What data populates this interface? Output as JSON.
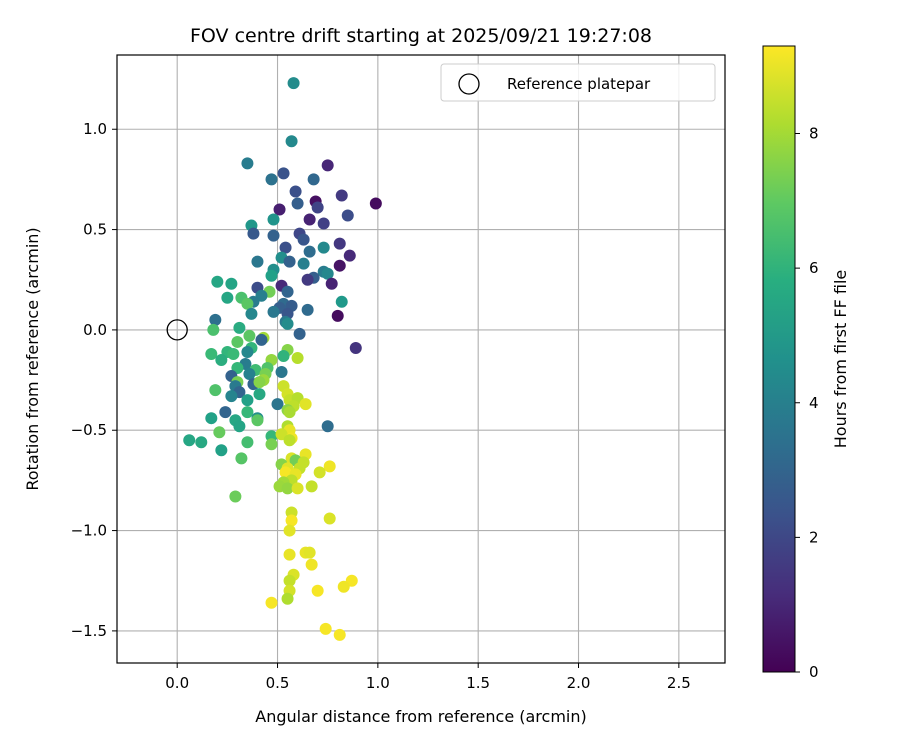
{
  "chart_data": {
    "type": "scatter",
    "title": "FOV centre drift starting at 2025/09/21 19:27:08",
    "xlabel": "Angular distance from reference (arcmin)",
    "ylabel": "Rotation from reference (arcmin)",
    "xlim": [
      -0.3,
      2.73
    ],
    "ylim": [
      -1.66,
      1.37
    ],
    "xticks": [
      0.0,
      0.5,
      1.0,
      1.5,
      2.0,
      2.5
    ],
    "xtick_labels": [
      "0.0",
      "0.5",
      "1.0",
      "1.5",
      "2.0",
      "2.5"
    ],
    "yticks": [
      1.0,
      0.5,
      0.0,
      -0.5,
      -1.0,
      -1.5
    ],
    "ytick_labels": [
      "1.0",
      "0.5",
      "0.0",
      "−0.5",
      "−1.0",
      "−1.5"
    ],
    "grid": true,
    "colormap": "viridis",
    "colorbar": {
      "label": "Hours from first FF file",
      "range": [
        0,
        9.3
      ],
      "ticks": [
        0,
        2,
        4,
        6,
        8
      ],
      "tick_labels": [
        "0",
        "2",
        "4",
        "6",
        "8"
      ]
    },
    "legend": {
      "location": "top-right",
      "label": "Reference platepar"
    },
    "reference_point": {
      "x": 0.0,
      "y": 0.0
    },
    "points": [
      {
        "x": 0.58,
        "y": 1.23,
        "h": 4.5
      },
      {
        "x": 0.57,
        "y": 0.94,
        "h": 4.4
      },
      {
        "x": 0.35,
        "y": 0.83,
        "h": 3.9
      },
      {
        "x": 0.53,
        "y": 0.78,
        "h": 2.4
      },
      {
        "x": 0.47,
        "y": 0.75,
        "h": 3.5
      },
      {
        "x": 0.68,
        "y": 0.75,
        "h": 3.1
      },
      {
        "x": 0.75,
        "y": 0.82,
        "h": 1.0
      },
      {
        "x": 0.59,
        "y": 0.69,
        "h": 2.3
      },
      {
        "x": 0.82,
        "y": 0.67,
        "h": 1.6
      },
      {
        "x": 0.69,
        "y": 0.64,
        "h": 0.4
      },
      {
        "x": 0.99,
        "y": 0.63,
        "h": 0.3
      },
      {
        "x": 0.6,
        "y": 0.63,
        "h": 2.8
      },
      {
        "x": 0.51,
        "y": 0.6,
        "h": 0.8
      },
      {
        "x": 0.7,
        "y": 0.61,
        "h": 1.9
      },
      {
        "x": 0.85,
        "y": 0.57,
        "h": 2.2
      },
      {
        "x": 0.48,
        "y": 0.55,
        "h": 4.8
      },
      {
        "x": 0.66,
        "y": 0.55,
        "h": 0.9
      },
      {
        "x": 0.37,
        "y": 0.52,
        "h": 4.9
      },
      {
        "x": 0.73,
        "y": 0.53,
        "h": 1.8
      },
      {
        "x": 0.61,
        "y": 0.48,
        "h": 2.0
      },
      {
        "x": 0.38,
        "y": 0.48,
        "h": 2.6
      },
      {
        "x": 0.48,
        "y": 0.47,
        "h": 2.9
      },
      {
        "x": 0.63,
        "y": 0.45,
        "h": 2.5
      },
      {
        "x": 0.81,
        "y": 0.43,
        "h": 1.5
      },
      {
        "x": 0.54,
        "y": 0.41,
        "h": 2.3
      },
      {
        "x": 0.73,
        "y": 0.41,
        "h": 4.4
      },
      {
        "x": 0.66,
        "y": 0.39,
        "h": 3.3
      },
      {
        "x": 0.86,
        "y": 0.37,
        "h": 1.1
      },
      {
        "x": 0.52,
        "y": 0.36,
        "h": 4.6
      },
      {
        "x": 0.4,
        "y": 0.34,
        "h": 3.7
      },
      {
        "x": 0.56,
        "y": 0.34,
        "h": 2.9
      },
      {
        "x": 0.63,
        "y": 0.33,
        "h": 4.0
      },
      {
        "x": 0.81,
        "y": 0.32,
        "h": 0.5
      },
      {
        "x": 0.48,
        "y": 0.3,
        "h": 4.6
      },
      {
        "x": 0.73,
        "y": 0.29,
        "h": 3.9
      },
      {
        "x": 0.75,
        "y": 0.28,
        "h": 4.3
      },
      {
        "x": 0.47,
        "y": 0.27,
        "h": 5.3
      },
      {
        "x": 0.68,
        "y": 0.26,
        "h": 2.8
      },
      {
        "x": 0.65,
        "y": 0.25,
        "h": 1.6
      },
      {
        "x": 0.77,
        "y": 0.23,
        "h": 0.9
      },
      {
        "x": 0.52,
        "y": 0.22,
        "h": 1.1
      },
      {
        "x": 0.2,
        "y": 0.24,
        "h": 5.5
      },
      {
        "x": 0.27,
        "y": 0.23,
        "h": 5.4
      },
      {
        "x": 0.4,
        "y": 0.21,
        "h": 2.2
      },
      {
        "x": 0.55,
        "y": 0.19,
        "h": 3.0
      },
      {
        "x": 0.46,
        "y": 0.19,
        "h": 7.3
      },
      {
        "x": 0.42,
        "y": 0.17,
        "h": 4.0
      },
      {
        "x": 0.32,
        "y": 0.16,
        "h": 6.6
      },
      {
        "x": 0.25,
        "y": 0.16,
        "h": 5.5
      },
      {
        "x": 0.38,
        "y": 0.14,
        "h": 3.9
      },
      {
        "x": 0.35,
        "y": 0.13,
        "h": 6.9
      },
      {
        "x": 0.53,
        "y": 0.13,
        "h": 3.2
      },
      {
        "x": 0.82,
        "y": 0.14,
        "h": 5.0
      },
      {
        "x": 0.57,
        "y": 0.12,
        "h": 2.7
      },
      {
        "x": 0.51,
        "y": 0.11,
        "h": 2.8
      },
      {
        "x": 0.65,
        "y": 0.1,
        "h": 3.2
      },
      {
        "x": 0.48,
        "y": 0.09,
        "h": 3.7
      },
      {
        "x": 0.37,
        "y": 0.08,
        "h": 4.3
      },
      {
        "x": 0.55,
        "y": 0.08,
        "h": 2.5
      },
      {
        "x": 0.8,
        "y": 0.07,
        "h": 0.3
      },
      {
        "x": 0.19,
        "y": 0.05,
        "h": 3.4
      },
      {
        "x": 0.54,
        "y": 0.04,
        "h": 3.8
      },
      {
        "x": 0.31,
        "y": 0.01,
        "h": 5.7
      },
      {
        "x": 0.18,
        "y": 0.0,
        "h": 6.6
      },
      {
        "x": 0.55,
        "y": 0.03,
        "h": 4.5
      },
      {
        "x": 0.61,
        "y": -0.02,
        "h": 2.9
      },
      {
        "x": 0.36,
        "y": -0.03,
        "h": 6.9
      },
      {
        "x": 0.43,
        "y": -0.04,
        "h": 8.0
      },
      {
        "x": 0.42,
        "y": -0.05,
        "h": 3.0
      },
      {
        "x": 0.3,
        "y": -0.06,
        "h": 6.9
      },
      {
        "x": 0.89,
        "y": -0.09,
        "h": 1.4
      },
      {
        "x": 0.37,
        "y": -0.09,
        "h": 6.1
      },
      {
        "x": 0.35,
        "y": -0.11,
        "h": 4.3
      },
      {
        "x": 0.25,
        "y": -0.11,
        "h": 6.1
      },
      {
        "x": 0.55,
        "y": -0.1,
        "h": 7.6
      },
      {
        "x": 0.17,
        "y": -0.12,
        "h": 6.3
      },
      {
        "x": 0.53,
        "y": -0.13,
        "h": 6.0
      },
      {
        "x": 0.28,
        "y": -0.12,
        "h": 6.3
      },
      {
        "x": 0.6,
        "y": -0.14,
        "h": 8.3
      },
      {
        "x": 0.22,
        "y": -0.15,
        "h": 5.8
      },
      {
        "x": 0.34,
        "y": -0.17,
        "h": 3.9
      },
      {
        "x": 0.47,
        "y": -0.15,
        "h": 7.8
      },
      {
        "x": 0.3,
        "y": -0.19,
        "h": 6.2
      },
      {
        "x": 0.39,
        "y": -0.2,
        "h": 6.4
      },
      {
        "x": 0.45,
        "y": -0.19,
        "h": 6.7
      },
      {
        "x": 0.52,
        "y": -0.21,
        "h": 3.7
      },
      {
        "x": 0.36,
        "y": -0.22,
        "h": 4.1
      },
      {
        "x": 0.27,
        "y": -0.23,
        "h": 2.9
      },
      {
        "x": 0.44,
        "y": -0.22,
        "h": 7.4
      },
      {
        "x": 0.43,
        "y": -0.25,
        "h": 7.9
      },
      {
        "x": 0.3,
        "y": -0.26,
        "h": 7.4
      },
      {
        "x": 0.38,
        "y": -0.27,
        "h": 3.0
      },
      {
        "x": 0.29,
        "y": -0.28,
        "h": 3.8
      },
      {
        "x": 0.41,
        "y": -0.26,
        "h": 7.6
      },
      {
        "x": 0.53,
        "y": -0.28,
        "h": 8.6
      },
      {
        "x": 0.19,
        "y": -0.3,
        "h": 6.7
      },
      {
        "x": 0.31,
        "y": -0.31,
        "h": 3.0
      },
      {
        "x": 0.55,
        "y": -0.32,
        "h": 8.7
      },
      {
        "x": 0.41,
        "y": -0.32,
        "h": 5.6
      },
      {
        "x": 0.27,
        "y": -0.33,
        "h": 4.2
      },
      {
        "x": 0.35,
        "y": -0.35,
        "h": 5.3
      },
      {
        "x": 0.56,
        "y": -0.35,
        "h": 8.5
      },
      {
        "x": 0.6,
        "y": -0.34,
        "h": 8.3
      },
      {
        "x": 0.5,
        "y": -0.37,
        "h": 3.6
      },
      {
        "x": 0.64,
        "y": -0.37,
        "h": 8.9
      },
      {
        "x": 0.58,
        "y": -0.38,
        "h": 8.4
      },
      {
        "x": 0.55,
        "y": -0.4,
        "h": 7.7
      },
      {
        "x": 0.35,
        "y": -0.41,
        "h": 6.2
      },
      {
        "x": 0.24,
        "y": -0.41,
        "h": 3.0
      },
      {
        "x": 0.56,
        "y": -0.41,
        "h": 8.1
      },
      {
        "x": 0.17,
        "y": -0.44,
        "h": 5.3
      },
      {
        "x": 0.4,
        "y": -0.44,
        "h": 4.6
      },
      {
        "x": 0.4,
        "y": -0.45,
        "h": 6.9
      },
      {
        "x": 0.29,
        "y": -0.45,
        "h": 5.5
      },
      {
        "x": 0.31,
        "y": -0.48,
        "h": 5.4
      },
      {
        "x": 0.55,
        "y": -0.48,
        "h": 8.2
      },
      {
        "x": 0.75,
        "y": -0.48,
        "h": 3.3
      },
      {
        "x": 0.56,
        "y": -0.5,
        "h": 9.0
      },
      {
        "x": 0.21,
        "y": -0.51,
        "h": 7.1
      },
      {
        "x": 0.47,
        "y": -0.53,
        "h": 6.2
      },
      {
        "x": 0.52,
        "y": -0.52,
        "h": 8.6
      },
      {
        "x": 0.06,
        "y": -0.55,
        "h": 5.5
      },
      {
        "x": 0.57,
        "y": -0.54,
        "h": 9.1
      },
      {
        "x": 0.56,
        "y": -0.55,
        "h": 8.4
      },
      {
        "x": 0.35,
        "y": -0.56,
        "h": 6.5
      },
      {
        "x": 0.12,
        "y": -0.56,
        "h": 5.6
      },
      {
        "x": 0.47,
        "y": -0.57,
        "h": 7.4
      },
      {
        "x": 0.22,
        "y": -0.6,
        "h": 5.3
      },
      {
        "x": 0.32,
        "y": -0.64,
        "h": 6.8
      },
      {
        "x": 0.57,
        "y": -0.64,
        "h": 8.8
      },
      {
        "x": 0.64,
        "y": -0.62,
        "h": 9.0
      },
      {
        "x": 0.59,
        "y": -0.65,
        "h": 7.3
      },
      {
        "x": 0.52,
        "y": -0.67,
        "h": 7.6
      },
      {
        "x": 0.63,
        "y": -0.66,
        "h": 8.5
      },
      {
        "x": 0.55,
        "y": -0.69,
        "h": 8.9
      },
      {
        "x": 0.61,
        "y": -0.69,
        "h": 8.5
      },
      {
        "x": 0.54,
        "y": -0.71,
        "h": 9.2
      },
      {
        "x": 0.59,
        "y": -0.72,
        "h": 9.0
      },
      {
        "x": 0.76,
        "y": -0.68,
        "h": 9.1
      },
      {
        "x": 0.71,
        "y": -0.71,
        "h": 8.7
      },
      {
        "x": 0.57,
        "y": -0.75,
        "h": 8.4
      },
      {
        "x": 0.53,
        "y": -0.76,
        "h": 8.0
      },
      {
        "x": 0.51,
        "y": -0.78,
        "h": 7.9
      },
      {
        "x": 0.55,
        "y": -0.79,
        "h": 7.8
      },
      {
        "x": 0.6,
        "y": -0.79,
        "h": 8.8
      },
      {
        "x": 0.67,
        "y": -0.78,
        "h": 8.5
      },
      {
        "x": 0.29,
        "y": -0.83,
        "h": 7.2
      },
      {
        "x": 0.57,
        "y": -0.91,
        "h": 8.6
      },
      {
        "x": 0.76,
        "y": -0.94,
        "h": 8.8
      },
      {
        "x": 0.57,
        "y": -0.95,
        "h": 9.2
      },
      {
        "x": 0.56,
        "y": -1.0,
        "h": 8.9
      },
      {
        "x": 0.64,
        "y": -1.11,
        "h": 9.0
      },
      {
        "x": 0.66,
        "y": -1.11,
        "h": 8.9
      },
      {
        "x": 0.56,
        "y": -1.12,
        "h": 9.0
      },
      {
        "x": 0.67,
        "y": -1.17,
        "h": 9.1
      },
      {
        "x": 0.58,
        "y": -1.22,
        "h": 8.8
      },
      {
        "x": 0.56,
        "y": -1.25,
        "h": 8.5
      },
      {
        "x": 0.87,
        "y": -1.25,
        "h": 9.2
      },
      {
        "x": 0.83,
        "y": -1.28,
        "h": 9.1
      },
      {
        "x": 0.7,
        "y": -1.3,
        "h": 9.2
      },
      {
        "x": 0.56,
        "y": -1.3,
        "h": 8.7
      },
      {
        "x": 0.55,
        "y": -1.34,
        "h": 8.2
      },
      {
        "x": 0.47,
        "y": -1.36,
        "h": 9.2
      },
      {
        "x": 0.74,
        "y": -1.49,
        "h": 9.2
      },
      {
        "x": 0.81,
        "y": -1.52,
        "h": 9.2
      }
    ]
  }
}
